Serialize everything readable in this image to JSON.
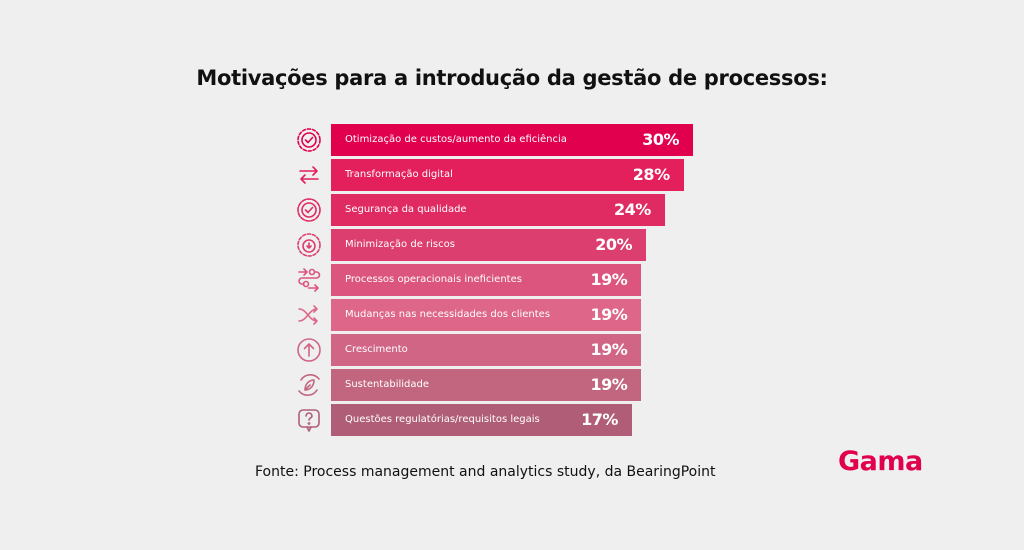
{
  "chart_data": {
    "type": "bar",
    "orientation": "horizontal",
    "title": "Motivações para a introdução da gestão de processos:",
    "categories": [
      "Otimização de custos/aumento da eficiência",
      "Transformação digital",
      "Segurança da qualidade",
      "Minimização de riscos",
      "Processos operacionais ineficientes",
      "Mudanças nas necessidades dos clientes",
      "Crescimento",
      "Sustentabilidade",
      "Questões regulatórias/requisitos legais"
    ],
    "values": [
      30,
      28,
      24,
      20,
      19,
      19,
      19,
      19,
      17
    ],
    "value_labels": [
      "30%",
      "28%",
      "24%",
      "20%",
      "19%",
      "19%",
      "19%",
      "19%",
      "17%"
    ],
    "icons": [
      "gear-check-icon",
      "transfer-arrows-icon",
      "badge-check-icon",
      "gear-shield-icon",
      "process-flow-icon",
      "shuffle-icon",
      "arrow-up-circle-icon",
      "leaf-cycle-icon",
      "question-bubble-icon"
    ],
    "colors": [
      "#e0004d",
      "#e31f5c",
      "#e02a62",
      "#dc3f6f",
      "#dc557e",
      "#de6688",
      "#d16586",
      "#c2667f",
      "#b05e78"
    ],
    "unit": "%"
  },
  "source": "Fonte: Process management and analytics study, da BearingPoint",
  "logo": "Gama",
  "brand_color": "#e0004d"
}
